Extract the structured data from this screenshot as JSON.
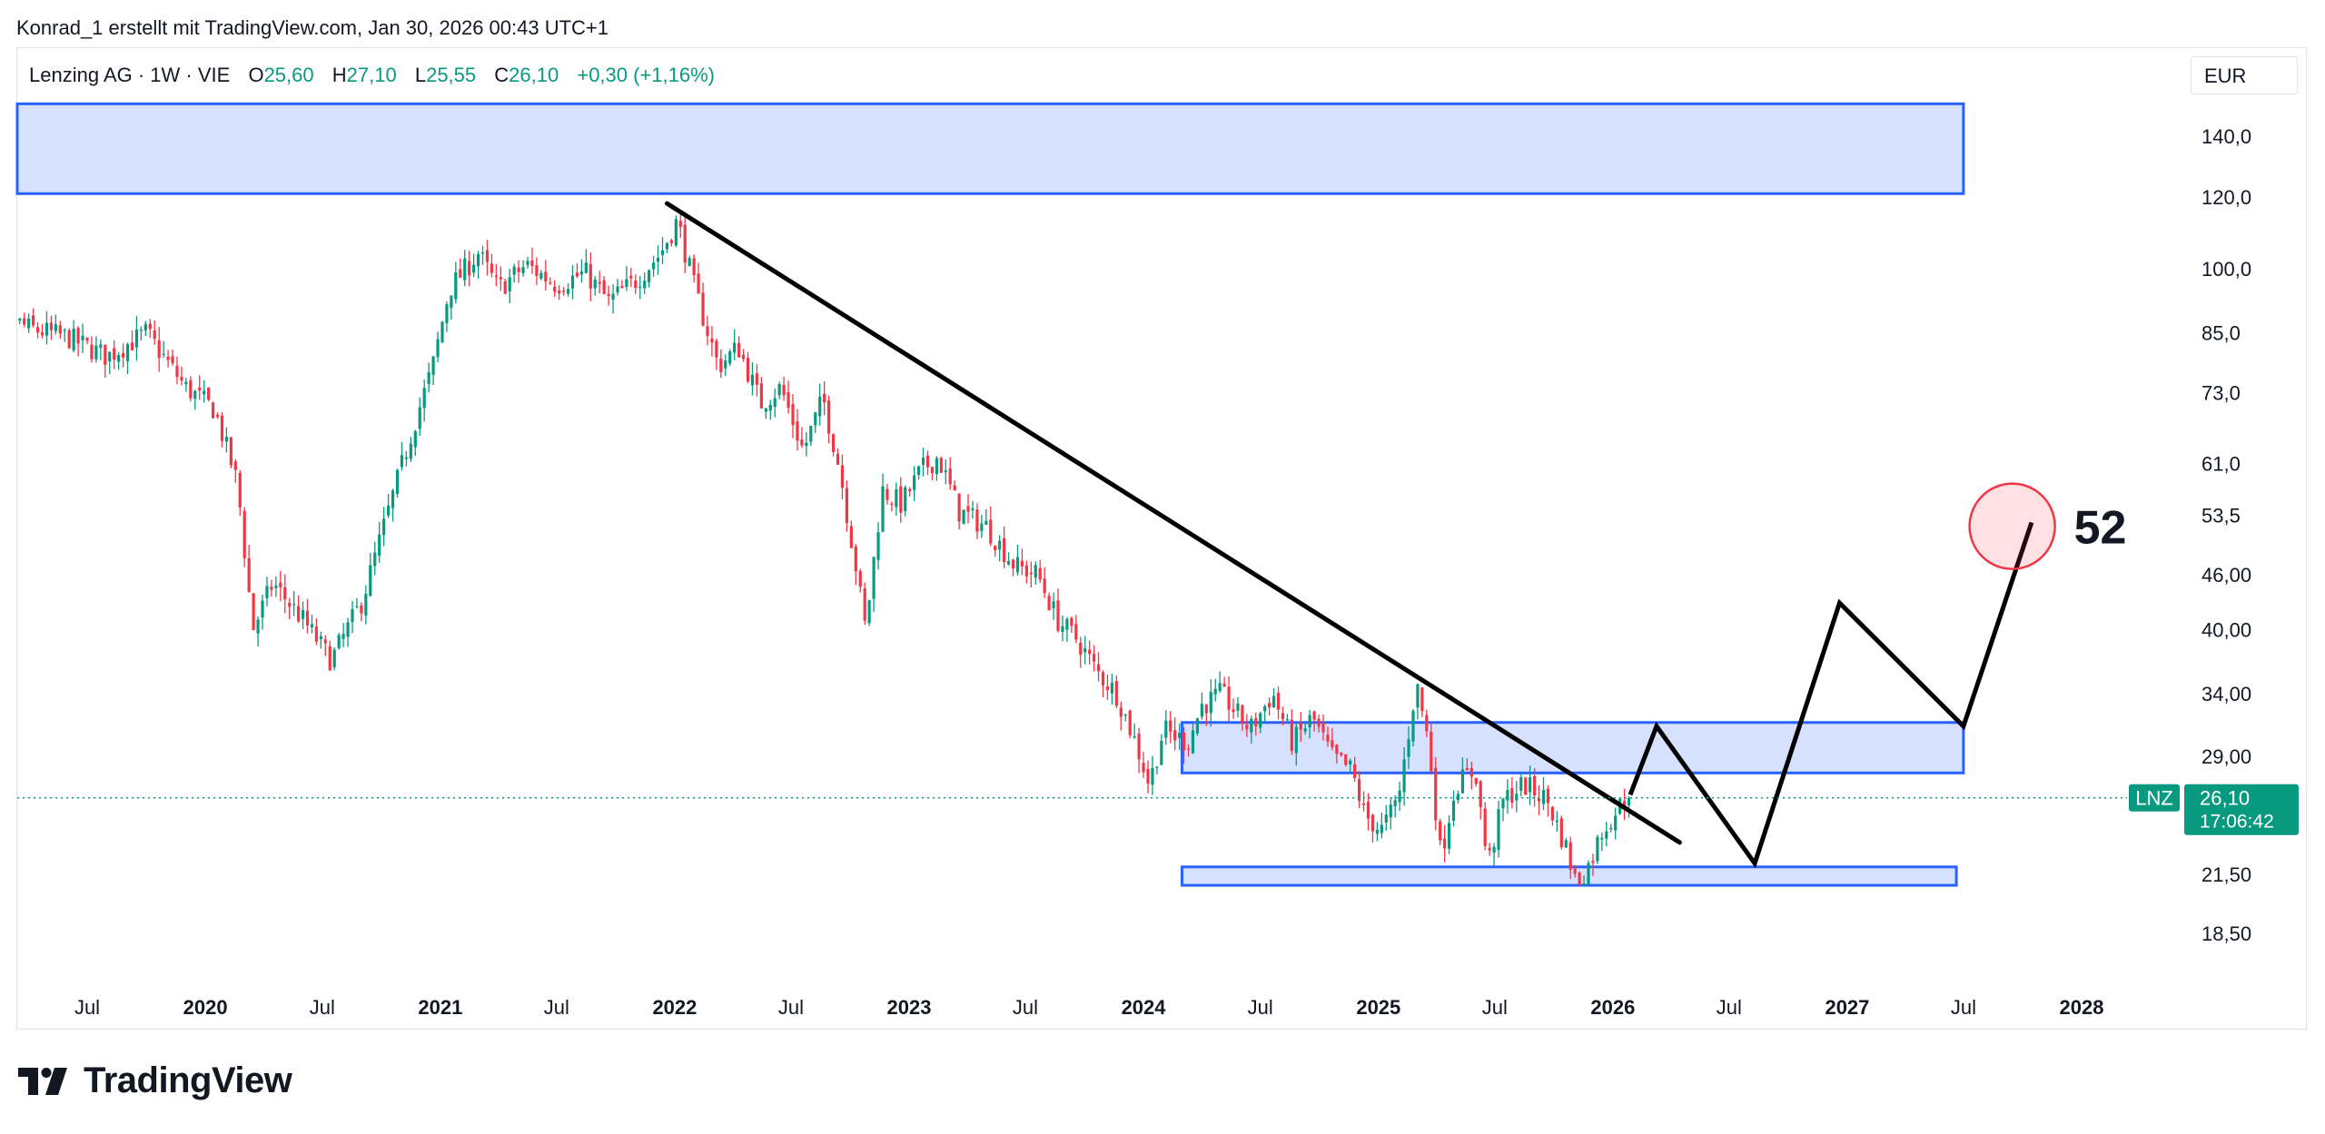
{
  "header": {
    "note": "Konrad_1 erstellt mit TradingView.com, Jan 30, 2026 00:43 UTC+1"
  },
  "legend": {
    "symbol": "Lenzing AG · 1W · VIE",
    "o_label": "O",
    "o_value": "25,60",
    "h_label": "H",
    "h_value": "27,10",
    "l_label": "L",
    "l_value": "25,55",
    "c_label": "C",
    "c_value": "26,10",
    "change": "+0,30 (+1,16%)"
  },
  "currency": "EUR",
  "price_tag": {
    "ticker": "LNZ",
    "price": "26,10",
    "countdown": "17:06:42"
  },
  "annotation": {
    "target": "52"
  },
  "brand": {
    "name": "TradingView"
  },
  "colors": {
    "up": "#089981",
    "down": "#f23645",
    "zone_fill": "#d6e0ff",
    "zone_stroke": "#2962ff",
    "line": "#000000",
    "target_circle": "#f23645"
  },
  "chart_data": {
    "type": "candlestick",
    "scale": "log",
    "grid": false,
    "y_ticks": [
      "140,0",
      "120,0",
      "100,0",
      "85,0",
      "73,0",
      "61,0",
      "53,5",
      "46,00",
      "40,00",
      "34,00",
      "29,00",
      "21,50",
      "18,50"
    ],
    "x_ticks": [
      {
        "label": "Jul",
        "date": "2019-07-01",
        "bold": false
      },
      {
        "label": "2020",
        "date": "2020-01-01",
        "bold": true
      },
      {
        "label": "Jul",
        "date": "2020-07-01",
        "bold": false
      },
      {
        "label": "2021",
        "date": "2021-01-01",
        "bold": true
      },
      {
        "label": "Jul",
        "date": "2021-07-01",
        "bold": false
      },
      {
        "label": "2022",
        "date": "2022-01-01",
        "bold": true
      },
      {
        "label": "Jul",
        "date": "2022-07-01",
        "bold": false
      },
      {
        "label": "2023",
        "date": "2023-01-01",
        "bold": true
      },
      {
        "label": "Jul",
        "date": "2023-07-01",
        "bold": false
      },
      {
        "label": "2024",
        "date": "2024-01-01",
        "bold": true
      },
      {
        "label": "Jul",
        "date": "2024-07-01",
        "bold": false
      },
      {
        "label": "2025",
        "date": "2025-01-01",
        "bold": true
      },
      {
        "label": "Jul",
        "date": "2025-07-01",
        "bold": false
      },
      {
        "label": "2026",
        "date": "2026-01-01",
        "bold": true
      },
      {
        "label": "Jul",
        "date": "2026-07-01",
        "bold": false
      },
      {
        "label": "2027",
        "date": "2027-01-01",
        "bold": true
      },
      {
        "label": "Jul",
        "date": "2027-07-01",
        "bold": false
      },
      {
        "label": "2028",
        "date": "2028-01-01",
        "bold": true
      }
    ],
    "last_close": 26.1,
    "price_path": [
      [
        "2019-01-01",
        82
      ],
      [
        "2019-02-01",
        90
      ],
      [
        "2019-04-01",
        86
      ],
      [
        "2019-06-01",
        84
      ],
      [
        "2019-08-01",
        80
      ],
      [
        "2019-10-01",
        85
      ],
      [
        "2019-12-01",
        74
      ],
      [
        "2020-01-15",
        70
      ],
      [
        "2020-02-20",
        58
      ],
      [
        "2020-03-15",
        40
      ],
      [
        "2020-04-15",
        45
      ],
      [
        "2020-06-01",
        41
      ],
      [
        "2020-07-15",
        37
      ],
      [
        "2020-09-01",
        43
      ],
      [
        "2020-10-15",
        55
      ],
      [
        "2020-11-20",
        67
      ],
      [
        "2020-12-20",
        78
      ],
      [
        "2021-01-15",
        95
      ],
      [
        "2021-03-01",
        104
      ],
      [
        "2021-04-01",
        95
      ],
      [
        "2021-05-15",
        101
      ],
      [
        "2021-07-01",
        96
      ],
      [
        "2021-08-15",
        99
      ],
      [
        "2021-09-20",
        92
      ],
      [
        "2021-11-01",
        97
      ],
      [
        "2021-12-10",
        104
      ],
      [
        "2022-01-05",
        113
      ],
      [
        "2022-02-01",
        95
      ],
      [
        "2022-03-10",
        78
      ],
      [
        "2022-04-10",
        82
      ],
      [
        "2022-05-15",
        71
      ],
      [
        "2022-06-15",
        74
      ],
      [
        "2022-07-20",
        63
      ],
      [
        "2022-08-20",
        72
      ],
      [
        "2022-09-15",
        60
      ],
      [
        "2022-10-10",
        47
      ],
      [
        "2022-10-25",
        40
      ],
      [
        "2022-11-20",
        57
      ],
      [
        "2022-12-20",
        55
      ],
      [
        "2023-01-20",
        60
      ],
      [
        "2023-02-15",
        62
      ],
      [
        "2023-03-20",
        54
      ],
      [
        "2023-05-01",
        52
      ],
      [
        "2023-06-15",
        47
      ],
      [
        "2023-07-20",
        46
      ],
      [
        "2023-08-20",
        41
      ],
      [
        "2023-09-20",
        39
      ],
      [
        "2023-10-20",
        36
      ],
      [
        "2023-11-20",
        34
      ],
      [
        "2023-12-20",
        30
      ],
      [
        "2024-01-10",
        27
      ],
      [
        "2024-02-01",
        31
      ],
      [
        "2024-03-10",
        30
      ],
      [
        "2024-04-01",
        33
      ],
      [
        "2024-05-01",
        34
      ],
      [
        "2024-06-15",
        31
      ],
      [
        "2024-07-20",
        34
      ],
      [
        "2024-08-20",
        30
      ],
      [
        "2024-09-20",
        32
      ],
      [
        "2024-10-20",
        29
      ],
      [
        "2024-11-20",
        28
      ],
      [
        "2024-12-10",
        25
      ],
      [
        "2025-01-05",
        24
      ],
      [
        "2025-02-01",
        26
      ],
      [
        "2025-03-01",
        35
      ],
      [
        "2025-03-20",
        30
      ],
      [
        "2025-04-08",
        22.5
      ],
      [
        "2025-05-01",
        27
      ],
      [
        "2025-06-01",
        28
      ],
      [
        "2025-06-20",
        22
      ],
      [
        "2025-07-15",
        26
      ],
      [
        "2025-08-15",
        27
      ],
      [
        "2025-09-20",
        26
      ],
      [
        "2025-10-20",
        23
      ],
      [
        "2025-11-05",
        21
      ],
      [
        "2025-11-25",
        22
      ],
      [
        "2025-12-15",
        24
      ],
      [
        "2026-01-10",
        25.5
      ],
      [
        "2026-01-26",
        26.1
      ]
    ],
    "zones": [
      {
        "from": "2018-12-20",
        "to": "2027-07-01",
        "low": 121,
        "high": 152
      },
      {
        "from": "2024-03-01",
        "to": "2027-07-01",
        "low": 27.8,
        "high": 31.6
      },
      {
        "from": "2024-03-01",
        "to": "2027-06-20",
        "low": 20.9,
        "high": 21.9
      }
    ],
    "trendline": [
      [
        "2021-12-20",
        118
      ],
      [
        "2026-04-15",
        23.3
      ]
    ],
    "projection": [
      [
        "2026-01-28",
        26.3
      ],
      [
        "2026-03-10",
        31.3
      ],
      [
        "2026-08-10",
        22.1
      ],
      [
        "2026-12-20",
        42.8
      ],
      [
        "2027-07-01",
        31.3
      ],
      [
        "2027-10-15",
        52.5
      ]
    ],
    "target_circle": {
      "date": "2027-09-15",
      "price": 52
    }
  }
}
